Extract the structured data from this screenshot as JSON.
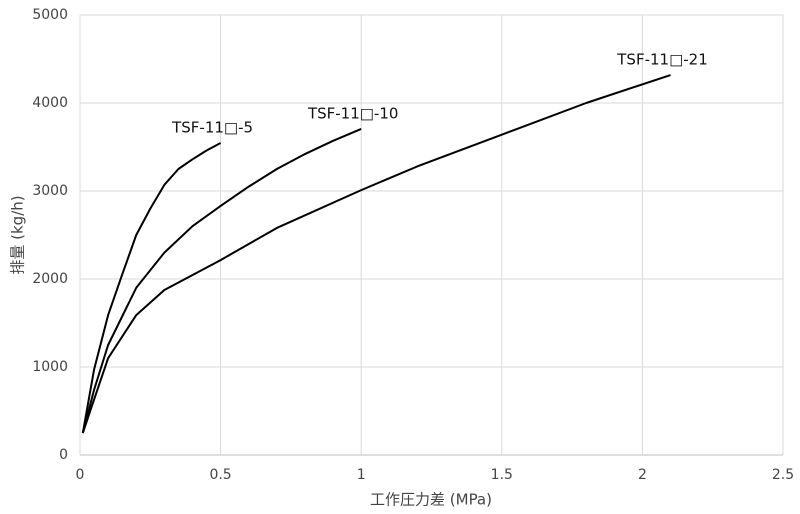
{
  "chart_data": {
    "type": "line",
    "x_label": "工作圧力差 (MPa)",
    "y_label": "排量 (kg/h)",
    "xlim": [
      0,
      2.5
    ],
    "xticks": [
      0,
      0.5,
      1,
      1.5,
      2,
      2.5
    ],
    "ylim": [
      0,
      5000
    ],
    "yticks": [
      0,
      1000,
      2000,
      3000,
      4000,
      5000
    ],
    "grid": true,
    "series": [
      {
        "name": "TSF-11□-5",
        "color": "#000000",
        "x": [
          0.01,
          0.05,
          0.1,
          0.15,
          0.2,
          0.25,
          0.3,
          0.35,
          0.4,
          0.45,
          0.5
        ],
        "values": [
          250,
          970,
          1590,
          2050,
          2500,
          2800,
          3070,
          3250,
          3360,
          3460,
          3545
        ]
      },
      {
        "name": "TSF-11□-10",
        "color": "#000000",
        "x": [
          0.01,
          0.05,
          0.1,
          0.2,
          0.3,
          0.4,
          0.5,
          0.6,
          0.7,
          0.8,
          0.9,
          1.0
        ],
        "values": [
          250,
          740,
          1250,
          1900,
          2300,
          2600,
          2830,
          3050,
          3250,
          3420,
          3570,
          3705
        ]
      },
      {
        "name": "TSF-11□-21",
        "color": "#000000",
        "x": [
          0.01,
          0.05,
          0.1,
          0.2,
          0.3,
          0.5,
          0.7,
          1.0,
          1.2,
          1.5,
          1.8,
          2.1
        ],
        "values": [
          250,
          630,
          1100,
          1590,
          1875,
          2215,
          2580,
          3010,
          3280,
          3640,
          4000,
          4318
        ]
      }
    ]
  }
}
